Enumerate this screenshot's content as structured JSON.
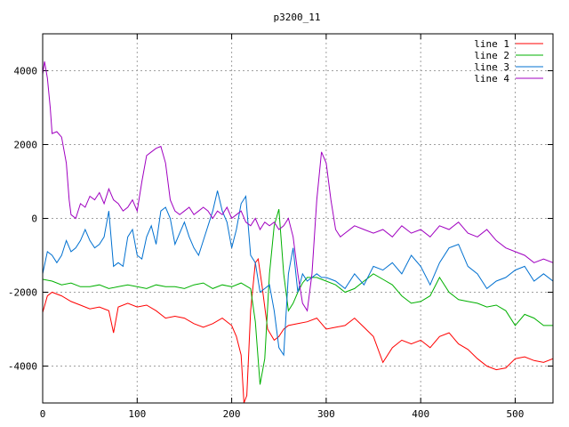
{
  "chart_data": {
    "type": "line",
    "title": "p3200_11",
    "xlabel": "",
    "ylabel": "",
    "xlim": [
      0,
      540
    ],
    "ylim": [
      -5000,
      5000
    ],
    "xticks": [
      0,
      100,
      200,
      300,
      400,
      500
    ],
    "yticks": [
      -4000,
      -2000,
      0,
      2000,
      4000
    ],
    "grid": true,
    "legend_position": "top-right",
    "series": [
      {
        "name": "line 1",
        "color": "#ff0000",
        "x": [
          0,
          5,
          10,
          20,
          30,
          40,
          50,
          60,
          70,
          75,
          80,
          90,
          100,
          110,
          120,
          130,
          140,
          150,
          160,
          170,
          180,
          190,
          200,
          205,
          210,
          213,
          216,
          220,
          225,
          228,
          232,
          238,
          245,
          250,
          255,
          260,
          270,
          280,
          290,
          300,
          310,
          320,
          330,
          340,
          350,
          360,
          370,
          380,
          390,
          400,
          410,
          420,
          430,
          440,
          450,
          460,
          470,
          480,
          490,
          500,
          510,
          520,
          530,
          540
        ],
        "y": [
          -2550,
          -2100,
          -2000,
          -2100,
          -2250,
          -2350,
          -2450,
          -2400,
          -2500,
          -3100,
          -2400,
          -2300,
          -2400,
          -2350,
          -2500,
          -2700,
          -2650,
          -2700,
          -2850,
          -2950,
          -2850,
          -2700,
          -2900,
          -3200,
          -3700,
          -5000,
          -4800,
          -2500,
          -1200,
          -1100,
          -1800,
          -3000,
          -3300,
          -3200,
          -3000,
          -2900,
          -2850,
          -2800,
          -2700,
          -3000,
          -2950,
          -2900,
          -2700,
          -2950,
          -3200,
          -3900,
          -3500,
          -3300,
          -3400,
          -3300,
          -3500,
          -3200,
          -3100,
          -3400,
          -3550,
          -3800,
          -4000,
          -4100,
          -4050,
          -3800,
          -3750,
          -3850,
          -3900,
          -3800
        ]
      },
      {
        "name": "line 2",
        "color": "#00b000",
        "x": [
          0,
          10,
          20,
          30,
          40,
          50,
          60,
          70,
          80,
          90,
          100,
          110,
          120,
          130,
          140,
          150,
          160,
          170,
          180,
          190,
          200,
          210,
          220,
          225,
          230,
          235,
          240,
          245,
          250,
          255,
          260,
          265,
          270,
          275,
          280,
          290,
          300,
          310,
          320,
          330,
          340,
          350,
          360,
          370,
          380,
          390,
          400,
          410,
          420,
          430,
          440,
          450,
          460,
          470,
          480,
          490,
          500,
          510,
          520,
          530,
          540
        ],
        "y": [
          -1650,
          -1700,
          -1800,
          -1750,
          -1850,
          -1850,
          -1800,
          -1900,
          -1850,
          -1800,
          -1850,
          -1900,
          -1800,
          -1850,
          -1850,
          -1900,
          -1800,
          -1750,
          -1900,
          -1800,
          -1850,
          -1750,
          -1900,
          -2800,
          -4500,
          -3800,
          -1500,
          -200,
          250,
          -1500,
          -2500,
          -2300,
          -2000,
          -1750,
          -1600,
          -1600,
          -1700,
          -1800,
          -2000,
          -1900,
          -1700,
          -1500,
          -1650,
          -1800,
          -2100,
          -2300,
          -2250,
          -2100,
          -1600,
          -2000,
          -2200,
          -2250,
          -2300,
          -2400,
          -2350,
          -2500,
          -2900,
          -2600,
          -2700,
          -2900,
          -2900
        ]
      },
      {
        "name": "line 3",
        "color": "#0070d0",
        "x": [
          0,
          5,
          10,
          15,
          20,
          25,
          30,
          35,
          40,
          45,
          50,
          55,
          60,
          65,
          70,
          75,
          80,
          85,
          90,
          95,
          100,
          105,
          110,
          115,
          120,
          125,
          130,
          135,
          140,
          145,
          150,
          155,
          160,
          165,
          170,
          175,
          180,
          185,
          190,
          195,
          200,
          205,
          210,
          215,
          220,
          225,
          230,
          235,
          240,
          245,
          250,
          255,
          260,
          265,
          270,
          275,
          280,
          285,
          290,
          295,
          300,
          310,
          320,
          330,
          340,
          350,
          360,
          370,
          380,
          390,
          400,
          410,
          420,
          430,
          440,
          450,
          460,
          470,
          480,
          490,
          500,
          510,
          520,
          530,
          540
        ],
        "y": [
          -1500,
          -900,
          -1000,
          -1200,
          -1000,
          -600,
          -900,
          -800,
          -600,
          -300,
          -600,
          -800,
          -700,
          -500,
          200,
          -1300,
          -1200,
          -1300,
          -500,
          -300,
          -1000,
          -1100,
          -500,
          -200,
          -700,
          200,
          300,
          0,
          -700,
          -400,
          -100,
          -500,
          -800,
          -1000,
          -600,
          -200,
          200,
          750,
          200,
          -100,
          -800,
          -300,
          400,
          600,
          -1000,
          -1200,
          -2000,
          -1900,
          -1800,
          -2500,
          -3500,
          -3700,
          -1500,
          -800,
          -2000,
          -1500,
          -1700,
          -1600,
          -1500,
          -1600,
          -1600,
          -1700,
          -1900,
          -1500,
          -1800,
          -1300,
          -1400,
          -1200,
          -1500,
          -1000,
          -1300,
          -1800,
          -1200,
          -800,
          -700,
          -1300,
          -1500,
          -1900,
          -1700,
          -1600,
          -1400,
          -1300,
          -1700,
          -1500,
          -1700
        ]
      },
      {
        "name": "line 4",
        "color": "#a000c0",
        "x": [
          0,
          2,
          5,
          8,
          10,
          15,
          20,
          25,
          28,
          30,
          35,
          40,
          45,
          50,
          55,
          60,
          65,
          70,
          75,
          80,
          85,
          90,
          95,
          100,
          105,
          110,
          115,
          120,
          125,
          130,
          135,
          140,
          145,
          150,
          155,
          160,
          165,
          170,
          175,
          180,
          185,
          190,
          195,
          200,
          205,
          210,
          215,
          220,
          225,
          230,
          235,
          240,
          245,
          250,
          255,
          260,
          265,
          270,
          275,
          280,
          285,
          290,
          295,
          300,
          305,
          310,
          315,
          320,
          330,
          340,
          350,
          360,
          370,
          380,
          390,
          400,
          410,
          420,
          430,
          440,
          450,
          460,
          470,
          480,
          490,
          500,
          510,
          520,
          530,
          540
        ],
        "y": [
          3900,
          4250,
          3800,
          3000,
          2300,
          2350,
          2200,
          1500,
          500,
          100,
          0,
          400,
          300,
          600,
          500,
          700,
          400,
          800,
          500,
          400,
          200,
          300,
          500,
          200,
          1000,
          1700,
          1800,
          1900,
          1950,
          1500,
          500,
          200,
          100,
          200,
          300,
          100,
          200,
          300,
          200,
          0,
          200,
          100,
          300,
          0,
          100,
          200,
          -100,
          -200,
          0,
          -300,
          -100,
          -200,
          -100,
          -300,
          -200,
          0,
          -500,
          -1500,
          -2300,
          -2500,
          -1500,
          500,
          1800,
          1500,
          500,
          -300,
          -500,
          -400,
          -200,
          -300,
          -400,
          -300,
          -500,
          -200,
          -400,
          -300,
          -500,
          -200,
          -300,
          -100,
          -400,
          -500,
          -300,
          -600,
          -800,
          -900,
          -1000,
          -1200,
          -1100,
          -1200
        ]
      }
    ]
  }
}
